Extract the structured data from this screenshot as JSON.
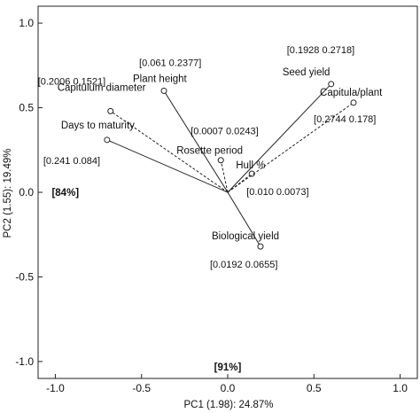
{
  "chart_data": {
    "type": "scatter",
    "subtype": "pca-biplot",
    "title": "",
    "xlabel": "PC1 (1.98): 24.87%",
    "ylabel": "PC2 (1.55): 19.49%",
    "xlim": [
      -1.1,
      1.1
    ],
    "ylim": [
      -1.1,
      1.1
    ],
    "xticks": [
      -1.0,
      -0.5,
      0.0,
      0.5,
      1.0
    ],
    "yticks": [
      -1.0,
      -0.5,
      0.0,
      0.5,
      1.0
    ],
    "xtick_labels": [
      "-1.0",
      "-0.5",
      "0.0",
      "0.5",
      "1.0"
    ],
    "ytick_labels": [
      "-1.0",
      "-0.5",
      "0.0",
      "0.5",
      "1.0"
    ],
    "grid": false,
    "origin": [
      0.0,
      0.0
    ],
    "variables": [
      {
        "name": "Plant height",
        "coords": "[0.061   0.2377]",
        "x": -0.37,
        "y": 0.6,
        "line": "solid"
      },
      {
        "name": "Capitulum diameter",
        "coords": "[0.2006   0.1521]",
        "x": -0.68,
        "y": 0.48,
        "line": "dashed"
      },
      {
        "name": "Days to maturity",
        "coords": "[0.241   0.084]",
        "x": -0.7,
        "y": 0.31,
        "line": "solid"
      },
      {
        "name": "Rosette period",
        "coords": "[0.0007   0.0243]",
        "x": -0.04,
        "y": 0.19,
        "line": "dashed"
      },
      {
        "name": "Hull %",
        "coords": "[0.010   0.0073]",
        "x": 0.14,
        "y": 0.11,
        "line": "dashed"
      },
      {
        "name": "Seed yield",
        "coords": "[0.1928   0.2718]",
        "x": 0.6,
        "y": 0.64,
        "line": "solid"
      },
      {
        "name": "Capitula/plant",
        "coords": "[0.2744   0.178]",
        "x": 0.73,
        "y": 0.53,
        "line": "dashed"
      },
      {
        "name": "Biological yield",
        "coords": "[0.0192   0.0655]",
        "x": 0.19,
        "y": -0.32,
        "line": "solid"
      }
    ],
    "annotations": [
      {
        "text": "[84%]",
        "x": -1.0,
        "y": 0.0
      },
      {
        "text": "[91%]",
        "x": 0.0,
        "y": -0.98
      }
    ]
  }
}
